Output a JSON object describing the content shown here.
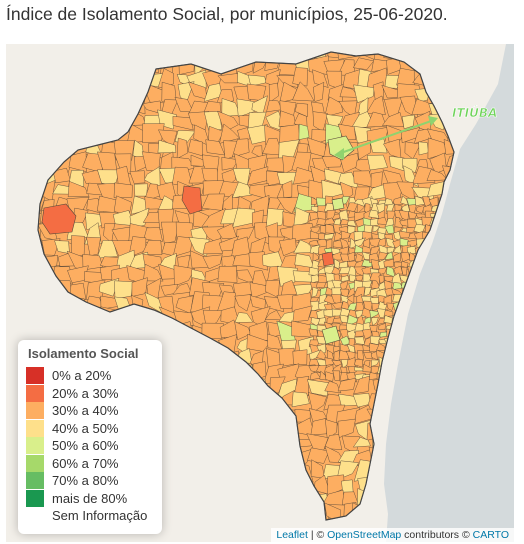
{
  "title": "Índice de Isolamento Social, por municípios, 25-06-2020.",
  "colors": {
    "c0_20": "#d73027",
    "c20_30": "#f46d43",
    "c30_40": "#fdae61",
    "c40_50": "#fee08b",
    "c50_60": "#d9ef8b",
    "c60_70": "#a6d96a",
    "c70_80": "#66bd63",
    "c80": "#1a9850",
    "sea": "#d4dadc",
    "land": "#f2efe9"
  },
  "legend": {
    "title": "Isolamento Social",
    "items": [
      {
        "label": "0% a 20%",
        "color": "#d73027"
      },
      {
        "label": "20% a 30%",
        "color": "#f46d43"
      },
      {
        "label": "30% a 40%",
        "color": "#fdae61"
      },
      {
        "label": "40% a 50%",
        "color": "#fee08b"
      },
      {
        "label": "50% a 60%",
        "color": "#d9ef8b"
      },
      {
        "label": "60% a 70%",
        "color": "#a6d96a"
      },
      {
        "label": "70% a 80%",
        "color": "#66bd63"
      },
      {
        "label": "mais de 80%",
        "color": "#1a9850"
      },
      {
        "label": "Sem Informação",
        "color": ""
      }
    ]
  },
  "highlight": {
    "label": "ITIÚBA",
    "color": "#6fd35a"
  },
  "attribution": {
    "leaflet": "Leaflet",
    "sep1": " | © ",
    "osm": "OpenStreetMap",
    "mid": " contributors © ",
    "carto": "CARTO"
  }
}
